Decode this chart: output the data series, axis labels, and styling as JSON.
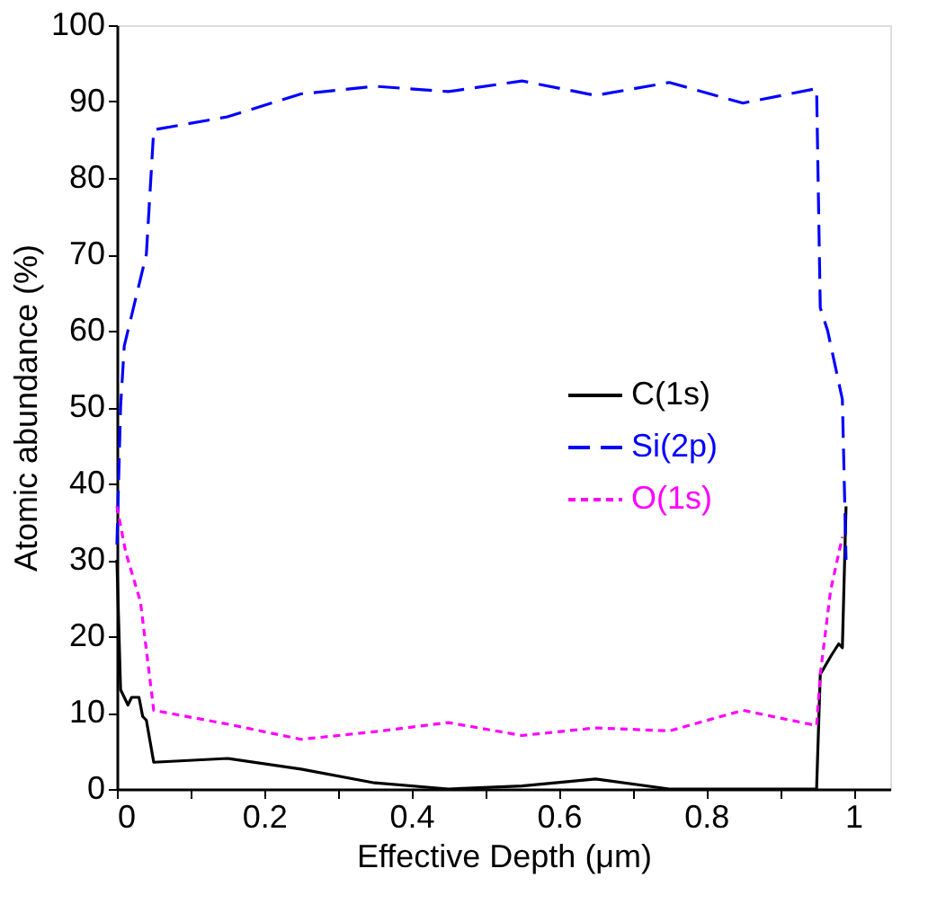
{
  "chart_data": {
    "type": "line",
    "xlabel": "Effective Depth (μm)",
    "ylabel": "Atomic abundance (%)",
    "xlim": [
      0,
      1.05
    ],
    "xticks": [
      0,
      {
        "value": 0.1,
        "label": null
      },
      0.2,
      {
        "value": 0.3,
        "label": null
      },
      0.4,
      {
        "value": 0.5,
        "label": null
      },
      0.6,
      {
        "value": 0.7,
        "label": null
      },
      0.8,
      {
        "value": 0.9,
        "label": null
      },
      1
    ],
    "ylim": [
      0,
      100
    ],
    "yticks": [
      0,
      10,
      20,
      30,
      40,
      50,
      60,
      70,
      80,
      90,
      100
    ],
    "grid": false,
    "legend": "right",
    "series": [
      {
        "name": "C(1s)",
        "color": "#000000",
        "line_style": "solid",
        "x": [
          0,
          0.005,
          0.01,
          0.015,
          0.02,
          0.03,
          0.035,
          0.04,
          0.05,
          0.15,
          0.25,
          0.35,
          0.45,
          0.55,
          0.65,
          0.75,
          0.95,
          0.955,
          0.97,
          0.98,
          0.985,
          0.99
        ],
        "values": [
          30,
          13,
          12,
          11,
          12,
          12,
          9.5,
          9,
          3.5,
          4,
          2.6,
          0.8,
          0,
          0.4,
          1.3,
          0,
          0,
          15,
          17.5,
          19,
          18.5,
          37
        ]
      },
      {
        "name": "Si(2p)",
        "color": "#0000ff",
        "line_style": "dashed",
        "x": [
          0,
          0.005,
          0.01,
          0.02,
          0.04,
          0.05,
          0.15,
          0.25,
          0.35,
          0.45,
          0.55,
          0.65,
          0.75,
          0.85,
          0.95,
          0.955,
          0.965,
          0.985,
          0.99
        ],
        "values": [
          32,
          50,
          58,
          62,
          70,
          86.3,
          88,
          91,
          92,
          91.3,
          92.7,
          90.8,
          92.5,
          89.8,
          91.7,
          63,
          60,
          51,
          30
        ]
      },
      {
        "name": "O(1s)",
        "color": "#ff00ff",
        "line_style": "dotted",
        "x": [
          0,
          0.012,
          0.032,
          0.05,
          0.15,
          0.25,
          0.35,
          0.45,
          0.55,
          0.65,
          0.75,
          0.85,
          0.95,
          0.955,
          0.969,
          0.985
        ],
        "values": [
          37,
          31,
          24.5,
          10.3,
          8.5,
          6.5,
          7.5,
          8.7,
          7.0,
          8.0,
          7.6,
          10.3,
          8.3,
          15,
          26,
          33
        ]
      }
    ]
  }
}
